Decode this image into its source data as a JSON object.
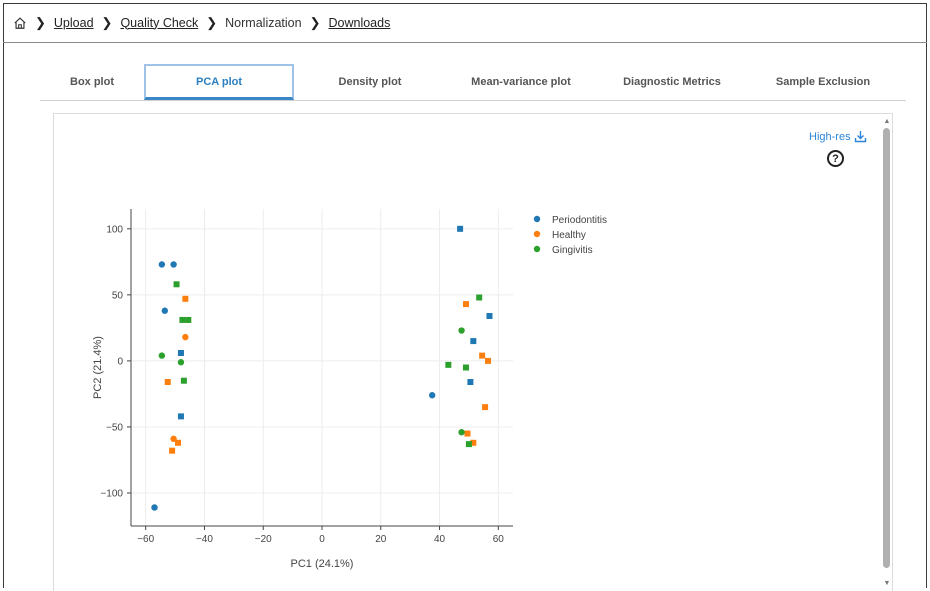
{
  "breadcrumb": {
    "items": [
      {
        "label": "Upload",
        "link": true
      },
      {
        "label": "Quality Check",
        "link": true
      },
      {
        "label": "Normalization",
        "link": false
      },
      {
        "label": "Downloads",
        "link": true
      }
    ]
  },
  "tabs": [
    {
      "label": "Box plot"
    },
    {
      "label": "PCA plot",
      "active": true
    },
    {
      "label": "Density plot"
    },
    {
      "label": "Mean-variance plot"
    },
    {
      "label": "Diagnostic Metrics"
    },
    {
      "label": "Sample Exclusion"
    }
  ],
  "toolbar": {
    "hires_label": "High-res",
    "help_label": "?"
  },
  "colors": {
    "Periodontitis": "#1f77b4",
    "Healthy": "#ff7f0e",
    "Gingivitis": "#2ca02c",
    "accent": "#2b86d9"
  },
  "chart_data": {
    "type": "scatter",
    "xlabel": "PC1 (24.1%)",
    "ylabel": "PC2 (21.4%)",
    "xlim": [
      -65,
      65
    ],
    "ylim": [
      -125,
      115
    ],
    "xticks": [
      -60,
      -40,
      -20,
      0,
      20,
      40,
      60
    ],
    "yticks": [
      100,
      50,
      0,
      -50,
      -100
    ],
    "grid": true,
    "legend_position": "top-right-outside",
    "series": [
      {
        "name": "Periodontitis",
        "points": [
          {
            "x": -54.5,
            "y": 73,
            "marker": "circle"
          },
          {
            "x": -50.5,
            "y": 73,
            "marker": "circle"
          },
          {
            "x": -53.5,
            "y": 38,
            "marker": "circle"
          },
          {
            "x": -48,
            "y": 6,
            "marker": "square"
          },
          {
            "x": -48,
            "y": -42,
            "marker": "square"
          },
          {
            "x": -57,
            "y": -111,
            "marker": "circle"
          },
          {
            "x": 47,
            "y": 100,
            "marker": "square"
          },
          {
            "x": 57,
            "y": 34,
            "marker": "square"
          },
          {
            "x": 51.5,
            "y": 15,
            "marker": "square"
          },
          {
            "x": 50.5,
            "y": -16,
            "marker": "square"
          },
          {
            "x": 37.5,
            "y": -26,
            "marker": "circle"
          }
        ]
      },
      {
        "name": "Healthy",
        "points": [
          {
            "x": -46.5,
            "y": 47,
            "marker": "square"
          },
          {
            "x": -46.5,
            "y": 18,
            "marker": "circle"
          },
          {
            "x": -52.5,
            "y": -16,
            "marker": "square"
          },
          {
            "x": -50.5,
            "y": -59,
            "marker": "circle"
          },
          {
            "x": -49,
            "y": -62,
            "marker": "square"
          },
          {
            "x": -51,
            "y": -68,
            "marker": "square"
          },
          {
            "x": 49,
            "y": 43,
            "marker": "square"
          },
          {
            "x": 54.5,
            "y": 4,
            "marker": "square"
          },
          {
            "x": 56.5,
            "y": 0,
            "marker": "square"
          },
          {
            "x": 55.5,
            "y": -35,
            "marker": "square"
          },
          {
            "x": 49.5,
            "y": -55,
            "marker": "square"
          },
          {
            "x": 51.5,
            "y": -62,
            "marker": "square"
          }
        ]
      },
      {
        "name": "Gingivitis",
        "points": [
          {
            "x": -49.5,
            "y": 58,
            "marker": "square"
          },
          {
            "x": -47.5,
            "y": 31,
            "marker": "square"
          },
          {
            "x": -45.5,
            "y": 31,
            "marker": "square"
          },
          {
            "x": -54.5,
            "y": 4,
            "marker": "circle"
          },
          {
            "x": -48,
            "y": -1,
            "marker": "circle"
          },
          {
            "x": -47,
            "y": -15,
            "marker": "square"
          },
          {
            "x": 53.5,
            "y": 48,
            "marker": "square"
          },
          {
            "x": 47.5,
            "y": 23,
            "marker": "circle"
          },
          {
            "x": 43,
            "y": -3,
            "marker": "square"
          },
          {
            "x": 49,
            "y": -5,
            "marker": "square"
          },
          {
            "x": 47.5,
            "y": -54,
            "marker": "circle"
          },
          {
            "x": 50,
            "y": -63,
            "marker": "square"
          }
        ]
      }
    ]
  }
}
